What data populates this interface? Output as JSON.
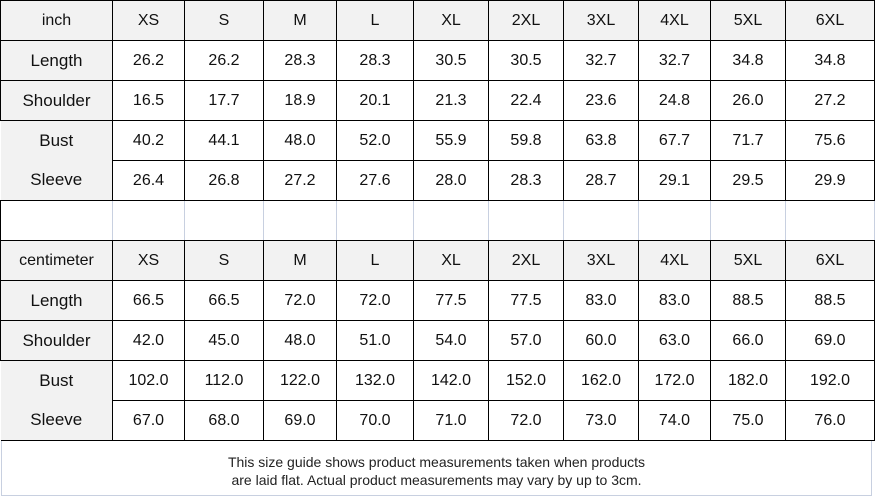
{
  "inch": {
    "unit_label": "inch",
    "sizes": [
      "XS",
      "S",
      "M",
      "L",
      "XL",
      "2XL",
      "3XL",
      "4XL",
      "5XL",
      "6XL"
    ],
    "rows": [
      {
        "label": "Length",
        "values": [
          "26.2",
          "26.2",
          "28.3",
          "28.3",
          "30.5",
          "30.5",
          "32.7",
          "32.7",
          "34.8",
          "34.8"
        ]
      },
      {
        "label": "Shoulder",
        "values": [
          "16.5",
          "17.7",
          "18.9",
          "20.1",
          "21.3",
          "22.4",
          "23.6",
          "24.8",
          "26.0",
          "27.2"
        ]
      },
      {
        "label": "Bust",
        "values": [
          "40.2",
          "44.1",
          "48.0",
          "52.0",
          "55.9",
          "59.8",
          "63.8",
          "67.7",
          "71.7",
          "75.6"
        ]
      },
      {
        "label": "Sleeve",
        "values": [
          "26.4",
          "26.8",
          "27.2",
          "27.6",
          "28.0",
          "28.3",
          "28.7",
          "29.1",
          "29.5",
          "29.9"
        ]
      }
    ]
  },
  "centimeter": {
    "unit_label": "centimeter",
    "sizes": [
      "XS",
      "S",
      "M",
      "L",
      "XL",
      "2XL",
      "3XL",
      "4XL",
      "5XL",
      "6XL"
    ],
    "rows": [
      {
        "label": "Length",
        "values": [
          "66.5",
          "66.5",
          "72.0",
          "72.0",
          "77.5",
          "77.5",
          "83.0",
          "83.0",
          "88.5",
          "88.5"
        ]
      },
      {
        "label": "Shoulder",
        "values": [
          "42.0",
          "45.0",
          "48.0",
          "51.0",
          "54.0",
          "57.0",
          "60.0",
          "63.0",
          "66.0",
          "69.0"
        ]
      },
      {
        "label": "Bust",
        "values": [
          "102.0",
          "112.0",
          "122.0",
          "132.0",
          "142.0",
          "152.0",
          "162.0",
          "172.0",
          "182.0",
          "192.0"
        ]
      },
      {
        "label": "Sleeve",
        "values": [
          "67.0",
          "68.0",
          "69.0",
          "70.0",
          "71.0",
          "72.0",
          "73.0",
          "74.0",
          "75.0",
          "76.0"
        ]
      }
    ]
  },
  "caption": {
    "line1": "This size guide shows product measurements taken when products",
    "line2": "are laid flat. Actual product measurements may vary by up to 3cm."
  },
  "colors": {
    "header_bg": "#f2f2f2",
    "border": "#000000"
  }
}
